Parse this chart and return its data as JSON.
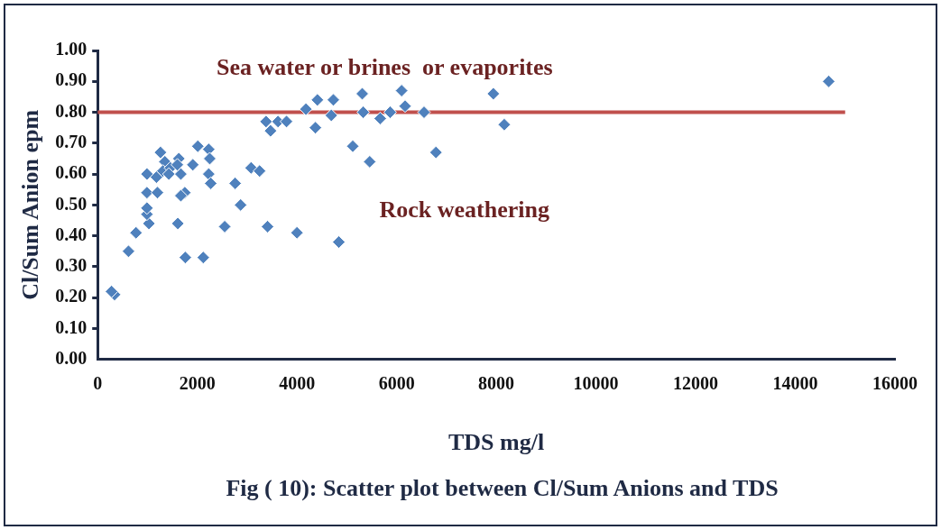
{
  "chart_data": {
    "type": "scatter",
    "xlabel": "TDS mg/l",
    "ylabel": "Cl/Sum Anion epm",
    "annotations": [
      "Sea water or brines  or evaporites",
      "Rock weathering",
      "Fig ( 10): Scatter plot between Cl/Sum Anions and TDS"
    ],
    "xlim": [
      0,
      16000
    ],
    "xticks": [
      0,
      2000,
      4000,
      6000,
      8000,
      10000,
      12000,
      14000,
      16000
    ],
    "ylim": [
      0,
      1
    ],
    "yticks": [
      {
        "value": 0,
        "label": "0.00"
      },
      {
        "value": 0.1,
        "label": "0.10"
      },
      {
        "value": 0.2,
        "label": "0.20"
      },
      {
        "value": 0.3,
        "label": "0.30"
      },
      {
        "value": 0.4,
        "label": "0.40"
      },
      {
        "value": 0.5,
        "label": "0.50"
      },
      {
        "value": 0.6,
        "label": "0.60"
      },
      {
        "value": 0.7,
        "label": "0.70"
      },
      {
        "value": 0.8,
        "label": "0.80"
      },
      {
        "value": 0.9,
        "label": "0.90"
      },
      {
        "value": 1,
        "label": "1.00"
      }
    ],
    "grid": false,
    "legend": false,
    "marker": "diamond",
    "series": [
      {
        "color": "#4f81bd",
        "x": [
          340,
          280,
          620,
          770,
          1030,
          990,
          990,
          990,
          1200,
          990,
          1180,
          1260,
          1350,
          1310,
          1460,
          1430,
          1630,
          1670,
          1600,
          1750,
          1670,
          1910,
          2010,
          2230,
          2250,
          2230,
          2270,
          2760,
          2870,
          1610,
          2550,
          3410,
          4000,
          4840,
          1760,
          2120,
          3080,
          3250,
          5120,
          3380,
          3470,
          3620,
          3790,
          4180,
          4410,
          4730,
          4370,
          4690,
          5310,
          5330,
          5670,
          5870,
          6100,
          6170,
          6550,
          7940,
          8160,
          5460,
          6790,
          14670
        ],
        "values": [
          0.21,
          0.22,
          0.35,
          0.41,
          0.44,
          0.47,
          0.49,
          0.54,
          0.54,
          0.6,
          0.59,
          0.67,
          0.64,
          0.61,
          0.62,
          0.6,
          0.65,
          0.6,
          0.63,
          0.54,
          0.53,
          0.63,
          0.69,
          0.68,
          0.65,
          0.6,
          0.57,
          0.57,
          0.5,
          0.44,
          0.43,
          0.43,
          0.41,
          0.38,
          0.33,
          0.33,
          0.62,
          0.61,
          0.69,
          0.77,
          0.74,
          0.77,
          0.77,
          0.81,
          0.84,
          0.84,
          0.75,
          0.79,
          0.86,
          0.8,
          0.78,
          0.8,
          0.87,
          0.82,
          0.8,
          0.86,
          0.76,
          0.64,
          0.67,
          0.9
        ]
      },
      {
        "type": "line",
        "color": "#c0504d",
        "marker": "none",
        "x": [
          0,
          15000
        ],
        "values": [
          0.8,
          0.8
        ]
      }
    ]
  }
}
